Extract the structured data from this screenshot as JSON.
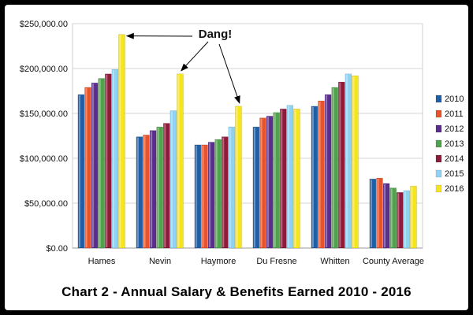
{
  "chart_data": {
    "type": "bar",
    "title": "Chart 2 - Annual Salary & Benefits Earned 2010 - 2016",
    "categories": [
      "Hames",
      "Nevin",
      "Haymore",
      "Du Fresne",
      "Whitten",
      "County Average"
    ],
    "ylim": [
      0,
      250000
    ],
    "yticks": [
      "$0.00",
      "$50,000.00",
      "$100,000.00",
      "$150,000.00",
      "$200,000.00",
      "$250,000.00"
    ],
    "ytick_values": [
      0,
      50000,
      100000,
      150000,
      200000,
      250000
    ],
    "grid": true,
    "legend_position": "right",
    "series": [
      {
        "name": "2010",
        "color": "#1f5fa8",
        "values": [
          171000,
          124000,
          115000,
          135000,
          158000,
          77000
        ]
      },
      {
        "name": "2011",
        "color": "#e8542a",
        "values": [
          179000,
          126000,
          115000,
          145000,
          164000,
          78000
        ]
      },
      {
        "name": "2012",
        "color": "#5b2d8e",
        "values": [
          184000,
          131000,
          118000,
          147000,
          171000,
          72000
        ]
      },
      {
        "name": "2013",
        "color": "#4fa34a",
        "values": [
          189000,
          135000,
          121000,
          151000,
          179000,
          67000
        ]
      },
      {
        "name": "2014",
        "color": "#8e1b3a",
        "values": [
          194000,
          139000,
          124000,
          155000,
          185000,
          62000
        ]
      },
      {
        "name": "2015",
        "color": "#8fd3f4",
        "values": [
          199000,
          153000,
          135000,
          159000,
          194000,
          64000
        ]
      },
      {
        "name": "2016",
        "color": "#f7e51c",
        "values": [
          238000,
          194000,
          158000,
          155000,
          192000,
          69000
        ]
      }
    ],
    "annotations": [
      {
        "text": "Dang!",
        "points_to": [
          "Hames 2016",
          "Nevin 2016",
          "Haymore 2016"
        ]
      }
    ]
  }
}
